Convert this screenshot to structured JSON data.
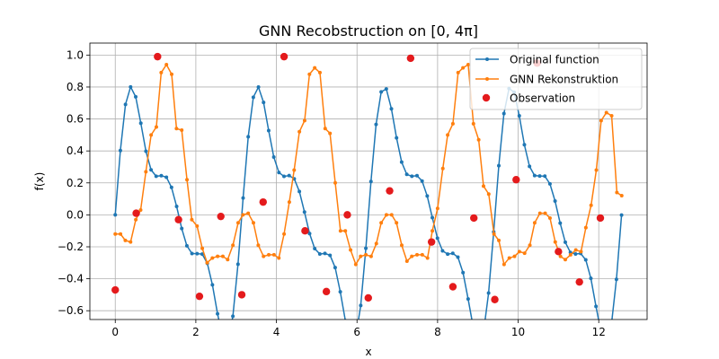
{
  "chart_data": {
    "type": "line",
    "title": "GNN Recobstruction on [0, 4π]",
    "xlabel": "x",
    "ylabel": "f(x)",
    "xlim": [
      -0.63,
      13.2
    ],
    "ylim": [
      -0.655,
      1.075
    ],
    "xticks": [
      0,
      2,
      4,
      6,
      8,
      10,
      12
    ],
    "yticks": [
      -0.6,
      -0.4,
      -0.2,
      0.0,
      0.2,
      0.4,
      0.6,
      0.8,
      1.0
    ],
    "xtick_labels": [
      "0",
      "2",
      "4",
      "6",
      "8",
      "10",
      "12"
    ],
    "ytick_labels": [
      "−0.6",
      "−0.4",
      "−0.2",
      "0.0",
      "0.2",
      "0.4",
      "0.6",
      "0.8",
      "1.0"
    ],
    "grid": true,
    "legend_position": "top-right",
    "series": [
      {
        "name": "Original function",
        "color": "#1f77b4",
        "style": "line-with-dot-markers",
        "expression": "(sin(2x) + sin(4x)/2 + sin(6x)/3) / 1.8",
        "x_range": [
          0,
          12.566
        ],
        "n_points": 100
      },
      {
        "name": "GNN Rekonstruktion",
        "color": "#ff7f0e",
        "style": "line-with-dot-markers",
        "points": [
          [
            0.0,
            -0.12
          ],
          [
            0.13,
            -0.12
          ],
          [
            0.25,
            -0.16
          ],
          [
            0.38,
            -0.17
          ],
          [
            0.51,
            -0.03
          ],
          [
            0.63,
            0.03
          ],
          [
            0.76,
            0.27
          ],
          [
            0.89,
            0.5
          ],
          [
            1.02,
            0.55
          ],
          [
            1.14,
            0.89
          ],
          [
            1.27,
            0.94
          ],
          [
            1.4,
            0.88
          ],
          [
            1.52,
            0.54
          ],
          [
            1.65,
            0.53
          ],
          [
            1.78,
            0.22
          ],
          [
            1.9,
            -0.03
          ],
          [
            2.03,
            -0.07
          ],
          [
            2.16,
            -0.21
          ],
          [
            2.28,
            -0.3
          ],
          [
            2.41,
            -0.27
          ],
          [
            2.54,
            -0.26
          ],
          [
            2.67,
            -0.26
          ],
          [
            2.79,
            -0.28
          ],
          [
            2.92,
            -0.19
          ],
          [
            3.05,
            -0.05
          ],
          [
            3.17,
            0.0
          ],
          [
            3.3,
            0.01
          ],
          [
            3.43,
            -0.05
          ],
          [
            3.55,
            -0.19
          ],
          [
            3.68,
            -0.26
          ],
          [
            3.81,
            -0.25
          ],
          [
            3.94,
            -0.25
          ],
          [
            4.06,
            -0.27
          ],
          [
            4.19,
            -0.12
          ],
          [
            4.32,
            0.08
          ],
          [
            4.44,
            0.28
          ],
          [
            4.57,
            0.52
          ],
          [
            4.7,
            0.59
          ],
          [
            4.82,
            0.88
          ],
          [
            4.95,
            0.92
          ],
          [
            5.08,
            0.89
          ],
          [
            5.21,
            0.54
          ],
          [
            5.33,
            0.51
          ],
          [
            5.46,
            0.2
          ],
          [
            5.59,
            -0.1
          ],
          [
            5.71,
            -0.1
          ],
          [
            5.84,
            -0.22
          ],
          [
            5.97,
            -0.31
          ],
          [
            6.09,
            -0.26
          ],
          [
            6.22,
            -0.25
          ],
          [
            6.35,
            -0.26
          ],
          [
            6.48,
            -0.18
          ],
          [
            6.6,
            -0.05
          ],
          [
            6.73,
            0.0
          ],
          [
            6.86,
            0.0
          ],
          [
            6.98,
            -0.05
          ],
          [
            7.11,
            -0.19
          ],
          [
            7.24,
            -0.29
          ],
          [
            7.36,
            -0.26
          ],
          [
            7.49,
            -0.25
          ],
          [
            7.62,
            -0.25
          ],
          [
            7.75,
            -0.27
          ],
          [
            7.87,
            -0.1
          ],
          [
            8.0,
            0.04
          ],
          [
            8.13,
            0.29
          ],
          [
            8.25,
            0.5
          ],
          [
            8.38,
            0.57
          ],
          [
            8.51,
            0.89
          ],
          [
            8.63,
            0.92
          ],
          [
            8.76,
            0.94
          ],
          [
            8.89,
            0.57
          ],
          [
            9.02,
            0.47
          ],
          [
            9.14,
            0.18
          ],
          [
            9.27,
            0.13
          ],
          [
            9.4,
            -0.12
          ],
          [
            9.52,
            -0.16
          ],
          [
            9.65,
            -0.31
          ],
          [
            9.78,
            -0.27
          ],
          [
            9.91,
            -0.26
          ],
          [
            10.03,
            -0.23
          ],
          [
            10.16,
            -0.24
          ],
          [
            10.29,
            -0.19
          ],
          [
            10.41,
            -0.05
          ],
          [
            10.54,
            0.01
          ],
          [
            10.67,
            0.01
          ],
          [
            10.79,
            -0.02
          ],
          [
            10.92,
            -0.17
          ],
          [
            11.05,
            -0.26
          ],
          [
            11.17,
            -0.28
          ],
          [
            11.3,
            -0.25
          ],
          [
            11.43,
            -0.22
          ],
          [
            11.56,
            -0.23
          ],
          [
            11.68,
            -0.08
          ],
          [
            11.81,
            0.06
          ],
          [
            11.94,
            0.28
          ],
          [
            12.06,
            0.59
          ],
          [
            12.19,
            0.64
          ],
          [
            12.32,
            0.62
          ],
          [
            12.45,
            0.14
          ],
          [
            12.57,
            0.12
          ]
        ]
      },
      {
        "name": "Observation",
        "color": "#e41a1c",
        "style": "scatter",
        "points": [
          [
            0.0,
            -0.47
          ],
          [
            0.52,
            0.01
          ],
          [
            1.05,
            0.99
          ],
          [
            1.57,
            -0.03
          ],
          [
            2.09,
            -0.51
          ],
          [
            2.62,
            -0.01
          ],
          [
            3.14,
            -0.5
          ],
          [
            3.67,
            0.08
          ],
          [
            4.19,
            0.99
          ],
          [
            4.71,
            -0.1
          ],
          [
            5.24,
            -0.48
          ],
          [
            5.76,
            0.0
          ],
          [
            6.28,
            -0.52
          ],
          [
            6.81,
            0.15
          ],
          [
            7.33,
            0.98
          ],
          [
            7.85,
            -0.17
          ],
          [
            8.38,
            -0.45
          ],
          [
            8.9,
            -0.02
          ],
          [
            9.42,
            -0.53
          ],
          [
            9.95,
            0.22
          ],
          [
            10.47,
            0.95
          ],
          [
            11.0,
            -0.23
          ],
          [
            11.52,
            -0.42
          ],
          [
            12.04,
            -0.02
          ]
        ]
      }
    ]
  }
}
